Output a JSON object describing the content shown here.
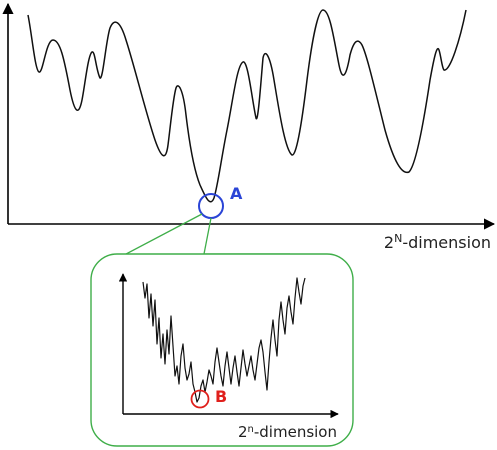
{
  "main_plot": {
    "x_axis_label": {
      "base": "2",
      "superscript": "N",
      "suffix": "-dimension"
    },
    "marker": {
      "label": "A",
      "color": "#2a44d6"
    }
  },
  "inset_plot": {
    "x_axis_label": {
      "base": "2",
      "superscript": "n",
      "suffix": "-dimension"
    },
    "marker": {
      "label": "B",
      "color": "#e0201c"
    },
    "frame_color": "#3fae49"
  },
  "curve_color": "#111111"
}
